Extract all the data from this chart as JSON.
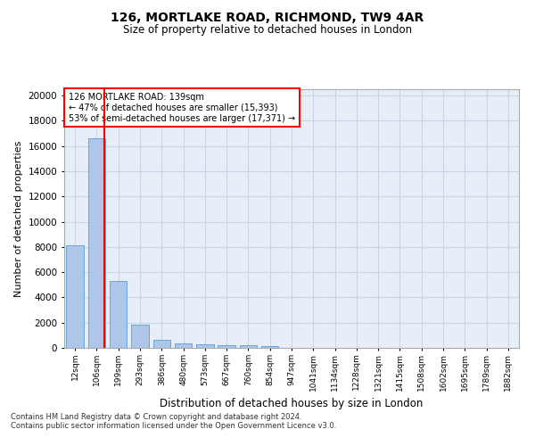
{
  "title1": "126, MORTLAKE ROAD, RICHMOND, TW9 4AR",
  "title2": "Size of property relative to detached houses in London",
  "xlabel": "Distribution of detached houses by size in London",
  "ylabel": "Number of detached properties",
  "categories": [
    "12sqm",
    "106sqm",
    "199sqm",
    "293sqm",
    "386sqm",
    "480sqm",
    "573sqm",
    "667sqm",
    "760sqm",
    "854sqm",
    "947sqm",
    "1041sqm",
    "1134sqm",
    "1228sqm",
    "1321sqm",
    "1415sqm",
    "1508sqm",
    "1602sqm",
    "1695sqm",
    "1789sqm",
    "1882sqm"
  ],
  "values": [
    8100,
    16600,
    5300,
    1850,
    650,
    350,
    270,
    200,
    190,
    170,
    0,
    0,
    0,
    0,
    0,
    0,
    0,
    0,
    0,
    0,
    0
  ],
  "bar_color": "#aec6e8",
  "bar_edge_color": "#5b9bd5",
  "grid_color": "#c8d4e8",
  "annotation_line1": "126 MORTLAKE ROAD: 139sqm",
  "annotation_line2": "← 47% of detached houses are smaller (15,393)",
  "annotation_line3": "53% of semi-detached houses are larger (17,371) →",
  "property_line_x": 1.35,
  "ylim": [
    0,
    20500
  ],
  "yticks": [
    0,
    2000,
    4000,
    6000,
    8000,
    10000,
    12000,
    14000,
    16000,
    18000,
    20000
  ],
  "footer_line1": "Contains HM Land Registry data © Crown copyright and database right 2024.",
  "footer_line2": "Contains public sector information licensed under the Open Government Licence v3.0.",
  "plot_bg_color": "#e8eef8"
}
